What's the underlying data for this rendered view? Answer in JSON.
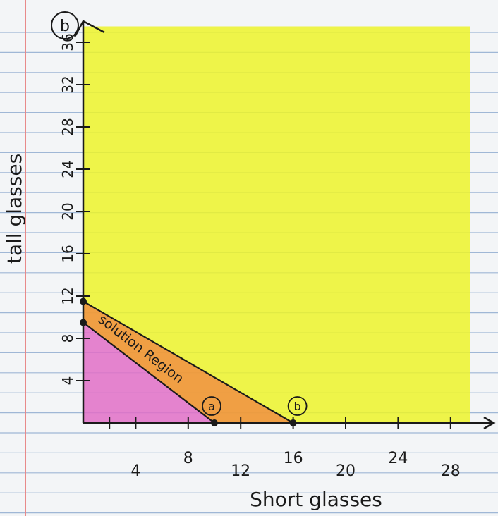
{
  "chart_data": {
    "type": "area",
    "problem_label": "b",
    "xlabel": "Short glasses",
    "ylabel": "tall glasses",
    "x_ticks": [
      "4",
      "8",
      "12",
      "16",
      "20",
      "24",
      "28"
    ],
    "y_ticks": [
      "4",
      "8",
      "12",
      "16",
      "20",
      "24",
      "28",
      "32",
      "36"
    ],
    "xlim": [
      0,
      30
    ],
    "ylim": [
      0,
      38
    ],
    "lines": [
      {
        "label": "a",
        "points": [
          [
            0,
            9.5
          ],
          [
            10,
            0
          ]
        ]
      },
      {
        "label": "b",
        "points": [
          [
            0,
            11.5
          ],
          [
            16,
            0
          ]
        ]
      }
    ],
    "region_label": "solution Region",
    "colors": {
      "yellow_region": "#ecf32a",
      "pink_region": "#e06fc7",
      "solution_region": "#ef9a3a",
      "ink": "#1a1a1a"
    }
  }
}
